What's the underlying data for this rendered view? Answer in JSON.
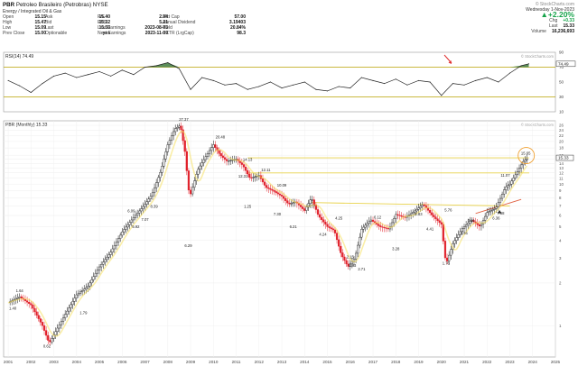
{
  "header": {
    "ticker": "PBR",
    "name": "Petroleo Brasileiro (Petrobras) NYSE",
    "sector": "Energy / Integrated Oil & Gas",
    "stats_col1": [
      {
        "k": "Open",
        "v": "15.15"
      },
      {
        "k": "High",
        "v": "15.47"
      },
      {
        "k": "Low",
        "v": "15.09"
      },
      {
        "k": "Prev Close",
        "v": "15.00"
      }
    ],
    "stats_col2": [
      {
        "k": "Ask",
        "v": "15.40"
      },
      {
        "k": "Bid",
        "v": "15.32"
      },
      {
        "k": "Last",
        "v": "15.33"
      },
      {
        "k": "Optionable",
        "v": "yes"
      }
    ],
    "stats_col3": [
      {
        "k": "P/E",
        "v": "2.94"
      },
      {
        "k": "EPS",
        "v": "5.21"
      },
      {
        "k": "Last Earnings",
        "v": "2023-08-03"
      },
      {
        "k": "Next Earnings",
        "v": "2023-11-09"
      }
    ],
    "stats_col4": [
      {
        "k": "Mkt Cap",
        "v": "57.00"
      },
      {
        "k": "Annual Dividend",
        "v": "3.19403"
      },
      {
        "k": "Yield",
        "v": "20.84%"
      },
      {
        "k": "SCTR (LrgCap)",
        "v": "98.3"
      }
    ],
    "watermark": "© StockCharts.com",
    "date": "Wednesday 1-Nov-2023",
    "change_pct": "+2.20%",
    "chg_label": "Chg",
    "chg": "+0.33",
    "last_label": "Last",
    "last": "15.33",
    "vol_label": "Volume",
    "volume": "16,236,693"
  },
  "rsi": {
    "label": "RSI(14) 74.49",
    "ticks": [
      "90",
      "70",
      "50",
      "30",
      "10"
    ],
    "current_tag": "74.49",
    "watermark": "© StockCharts.com"
  },
  "price": {
    "label": "PBR (Monthly) 15.33",
    "current_tag": "15.33",
    "watermark": "© StockCharts.com",
    "y_ticks": [
      "28",
      "26",
      "24",
      "22",
      "20",
      "18",
      "16",
      "15",
      "14",
      "13",
      "12",
      "11",
      "10",
      "9",
      "8",
      "7",
      "6",
      "5",
      "4",
      "3",
      "2",
      "1"
    ],
    "peak_labels": [
      {
        "t": "1.40",
        "x": 2001.2,
        "y": 1.3
      },
      {
        "t": "1.64",
        "x": 2001.5,
        "y": 1.72
      },
      {
        "t": "0.62",
        "x": 2002.7,
        "y": 0.7
      },
      {
        "t": "1.79",
        "x": 2004.3,
        "y": 1.2
      },
      {
        "t": "6.09",
        "x": 2006.4,
        "y": 6.3
      },
      {
        "t": "5.92",
        "x": 2006.6,
        "y": 4.9
      },
      {
        "t": "8.39",
        "x": 2007.4,
        "y": 6.8
      },
      {
        "t": "7.07",
        "x": 2007.0,
        "y": 5.5
      },
      {
        "t": "27.37",
        "x": 2008.7,
        "y": 28.0
      },
      {
        "t": "6.29",
        "x": 2008.9,
        "y": 3.6
      },
      {
        "t": "20.48",
        "x": 2010.3,
        "y": 21.0
      },
      {
        "t": "14.13",
        "x": 2011.5,
        "y": 14.6
      },
      {
        "t": "12.31",
        "x": 2011.3,
        "y": 11.1
      },
      {
        "t": "12.11",
        "x": 2012.3,
        "y": 12.3
      },
      {
        "t": "10.09",
        "x": 2013.0,
        "y": 9.6
      },
      {
        "t": "1.25",
        "x": 2011.5,
        "y": 6.8
      },
      {
        "t": "7.30",
        "x": 2012.8,
        "y": 6.0
      },
      {
        "t": "7.37",
        "x": 2014.3,
        "y": 6.8
      },
      {
        "t": "6.21",
        "x": 2013.5,
        "y": 4.9
      },
      {
        "t": "4.24",
        "x": 2014.8,
        "y": 4.3
      },
      {
        "t": "4.25",
        "x": 2015.5,
        "y": 5.6
      },
      {
        "t": "2.15",
        "x": 2016.0,
        "y": 3.0
      },
      {
        "t": "2.63",
        "x": 2016.1,
        "y": 2.6
      },
      {
        "t": "2.71",
        "x": 2016.5,
        "y": 2.45
      },
      {
        "t": "6.12",
        "x": 2017.2,
        "y": 5.7
      },
      {
        "t": "3.28",
        "x": 2018.0,
        "y": 3.4
      },
      {
        "t": "6.83",
        "x": 2019.0,
        "y": 6.0
      },
      {
        "t": "4.41",
        "x": 2019.5,
        "y": 4.7
      },
      {
        "t": "5.76",
        "x": 2020.3,
        "y": 6.4
      },
      {
        "t": "1.76",
        "x": 2020.2,
        "y": 2.7
      },
      {
        "t": "4.11",
        "x": 2021.3,
        "y": 5.4
      },
      {
        "t": "4.51",
        "x": 2021.0,
        "y": 4.4
      },
      {
        "t": "6.36",
        "x": 2022.4,
        "y": 5.6
      },
      {
        "t": "7.68",
        "x": 2022.6,
        "y": 6.1
      },
      {
        "t": "11.07",
        "x": 2022.8,
        "y": 11.3
      },
      {
        "t": "15.65",
        "x": 2023.7,
        "y": 16.2
      }
    ]
  },
  "chart_data": [
    {
      "type": "line",
      "title": "RSI(14) 74.49",
      "ylim": [
        10,
        90
      ],
      "reference_lines": [
        70,
        30
      ],
      "x": [
        2001.0,
        2001.5,
        2002.0,
        2002.5,
        2003.0,
        2003.5,
        2004.0,
        2004.5,
        2005.0,
        2005.5,
        2006.0,
        2006.5,
        2007.0,
        2007.5,
        2008.0,
        2008.5,
        2009.0,
        2009.5,
        2010.0,
        2010.5,
        2011.0,
        2011.5,
        2012.0,
        2012.5,
        2013.0,
        2013.5,
        2014.0,
        2014.5,
        2015.0,
        2015.5,
        2016.0,
        2016.5,
        2017.0,
        2017.5,
        2018.0,
        2018.5,
        2019.0,
        2019.5,
        2020.0,
        2020.5,
        2021.0,
        2021.5,
        2022.0,
        2022.5,
        2023.0,
        2023.5,
        2023.83
      ],
      "y": [
        52,
        45,
        36,
        48,
        58,
        62,
        56,
        60,
        64,
        58,
        66,
        60,
        70,
        72,
        76,
        68,
        40,
        56,
        52,
        46,
        48,
        40,
        44,
        50,
        42,
        46,
        50,
        40,
        38,
        44,
        42,
        56,
        52,
        48,
        54,
        46,
        52,
        50,
        32,
        48,
        46,
        52,
        56,
        50,
        62,
        72,
        74.49
      ]
    },
    {
      "type": "bar",
      "title": "PBR (Monthly) 15.33",
      "xlabel": "",
      "ylabel": "",
      "yscale": "log",
      "ylim": [
        0.6,
        28
      ],
      "x_ticks": [
        "2001",
        "2002",
        "2003",
        "2004",
        "2005",
        "2006",
        "2007",
        "2008",
        "2009",
        "2010",
        "2011",
        "2012",
        "2013",
        "2014",
        "2015",
        "2016",
        "2017",
        "2018",
        "2019",
        "2020",
        "2021",
        "2022",
        "2023",
        "2024",
        "2025"
      ],
      "series": [
        {
          "x": [
            2001.0,
            2001.5,
            2002.0,
            2002.5,
            2002.8,
            2003.5,
            2004.0,
            2004.5,
            2005.0,
            2005.5,
            2006.0,
            2006.5,
            2007.0,
            2007.3,
            2007.7,
            2008.0,
            2008.3,
            2008.55,
            2008.75,
            2008.95,
            2009.3,
            2009.7,
            2010.0,
            2010.3,
            2010.6,
            2011.0,
            2011.3,
            2011.6,
            2012.0,
            2012.3,
            2012.6,
            2013.0,
            2013.3,
            2013.6,
            2014.0,
            2014.3,
            2014.6,
            2015.0,
            2015.3,
            2015.6,
            2015.9,
            2016.2,
            2016.5,
            2016.9,
            2017.3,
            2017.7,
            2018.0,
            2018.4,
            2018.8,
            2019.2,
            2019.6,
            2020.0,
            2020.2,
            2020.5,
            2020.9,
            2021.3,
            2021.7,
            2022.0,
            2022.4,
            2022.8,
            2023.0,
            2023.3,
            2023.6,
            2023.83
          ],
          "y": [
            1.45,
            1.6,
            1.4,
            1.0,
            0.75,
            1.2,
            1.65,
            1.9,
            2.6,
            3.3,
            4.6,
            5.8,
            7.2,
            8.4,
            12.5,
            19.0,
            24.5,
            26.0,
            17.0,
            8.0,
            12.5,
            16.0,
            19.0,
            16.0,
            14.5,
            15.0,
            13.5,
            11.0,
            11.5,
            9.5,
            9.0,
            8.2,
            7.2,
            7.5,
            6.5,
            8.0,
            6.0,
            5.0,
            4.7,
            3.2,
            2.6,
            3.0,
            4.8,
            5.6,
            5.0,
            4.8,
            6.1,
            5.8,
            6.4,
            7.2,
            6.0,
            5.2,
            2.7,
            3.8,
            4.8,
            5.6,
            5.0,
            6.3,
            6.8,
            9.5,
            10.0,
            12.0,
            14.6,
            15.33
          ]
        }
      ],
      "horizontal_levels": [
        15.33,
        12.0
      ],
      "trendlines": [
        {
          "x": [
            2014.3,
            2023.0
          ],
          "y": [
            7.4,
            7.0
          ]
        },
        {
          "x": [
            2021.5,
            2023.5
          ],
          "y": [
            6.2,
            7.8
          ]
        }
      ]
    }
  ]
}
